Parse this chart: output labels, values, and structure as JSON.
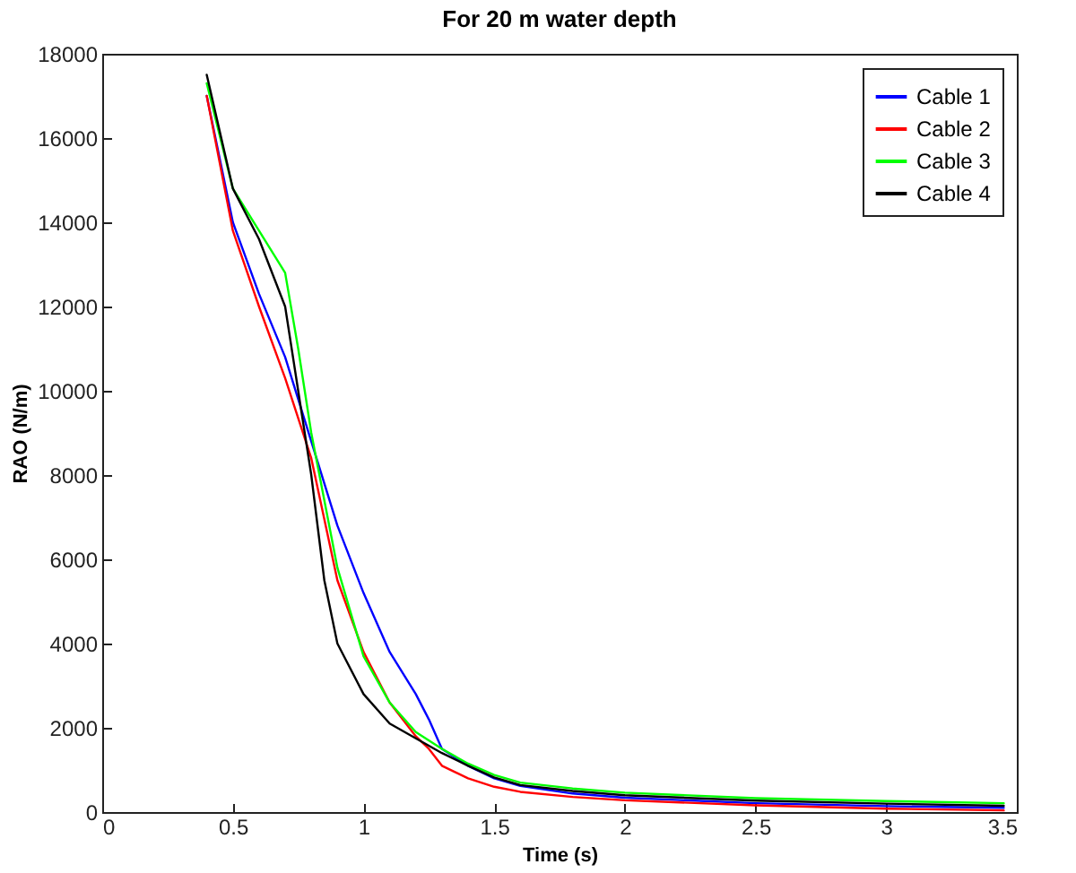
{
  "chart_data": {
    "type": "line",
    "title": "For 20 m water depth",
    "xlabel": "Time (s)",
    "ylabel": "RAO (N/m)",
    "xlim": [
      0,
      3.5
    ],
    "xticks": [
      0,
      0.5,
      1,
      1.5,
      2,
      2.5,
      3,
      3.5
    ],
    "ylim": [
      0,
      18000
    ],
    "yticks": [
      0,
      2000,
      4000,
      6000,
      8000,
      10000,
      12000,
      14000,
      16000,
      18000
    ],
    "grid": false,
    "legend": "top right",
    "line_style": "solid",
    "series": [
      {
        "name": "Cable 1",
        "color": "#0000ff",
        "x": [
          0.4,
          0.5,
          0.6,
          0.7,
          0.8,
          0.9,
          1.0,
          1.1,
          1.2,
          1.25,
          1.3,
          1.4,
          1.5,
          1.6,
          1.8,
          2.0,
          2.5,
          3.0,
          3.45
        ],
        "values": [
          17000,
          14000,
          12300,
          10800,
          8800,
          6800,
          5200,
          3800,
          2800,
          2200,
          1500,
          1100,
          800,
          620,
          440,
          340,
          210,
          140,
          100
        ]
      },
      {
        "name": "Cable 2",
        "color": "#ff0000",
        "x": [
          0.4,
          0.5,
          0.6,
          0.7,
          0.8,
          0.9,
          1.0,
          1.1,
          1.2,
          1.25,
          1.3,
          1.4,
          1.5,
          1.6,
          1.8,
          2.0,
          2.5,
          3.0,
          3.45
        ],
        "values": [
          17000,
          13800,
          12000,
          10300,
          8400,
          5500,
          3800,
          2600,
          1800,
          1500,
          1100,
          800,
          600,
          480,
          360,
          280,
          160,
          80,
          40
        ]
      },
      {
        "name": "Cable 3",
        "color": "#00ff00",
        "x": [
          0.4,
          0.5,
          0.6,
          0.7,
          0.75,
          0.8,
          0.9,
          1.0,
          1.1,
          1.2,
          1.3,
          1.4,
          1.5,
          1.6,
          1.8,
          2.0,
          2.5,
          3.0,
          3.45
        ],
        "values": [
          17300,
          14800,
          13800,
          12800,
          11000,
          9000,
          5800,
          3700,
          2600,
          1900,
          1500,
          1150,
          880,
          700,
          560,
          460,
          330,
          260,
          210
        ]
      },
      {
        "name": "Cable 4",
        "color": "#000000",
        "x": [
          0.4,
          0.5,
          0.6,
          0.7,
          0.8,
          0.85,
          0.9,
          1.0,
          1.1,
          1.2,
          1.3,
          1.4,
          1.5,
          1.6,
          1.8,
          2.0,
          2.5,
          3.0,
          3.45
        ],
        "values": [
          17500,
          14800,
          13600,
          12000,
          8000,
          5500,
          4000,
          2800,
          2100,
          1750,
          1400,
          1100,
          820,
          640,
          500,
          400,
          270,
          200,
          150
        ]
      }
    ]
  }
}
